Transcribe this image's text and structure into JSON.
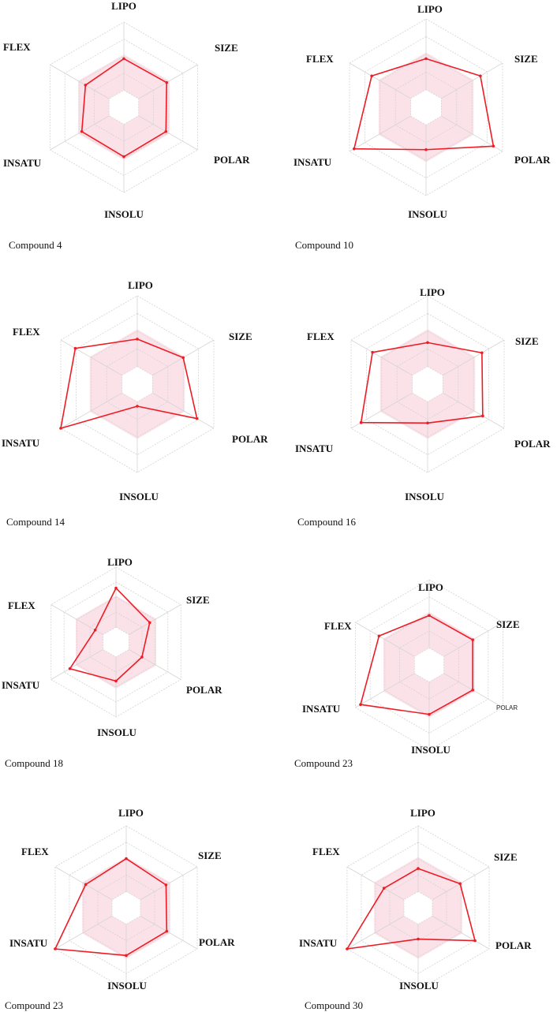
{
  "colors": {
    "optimal_band_fill": "#f7c8d6",
    "optimal_band_opacity": 0.55,
    "series_line": "#ee1c25",
    "grid": "#d4d4d4",
    "text": "#111111"
  },
  "axes": [
    "LIPO",
    "SIZE",
    "POLAR",
    "INSOLU",
    "INSATU",
    "FLEX"
  ],
  "chart_data": [
    {
      "type": "radar",
      "caption": "Compound 4",
      "axes": [
        "LIPO",
        "SIZE",
        "POLAR",
        "INSOLU",
        "INSATU",
        "FLEX"
      ],
      "series": [
        {
          "values": [
            0.57,
            0.58,
            0.57,
            0.58,
            0.57,
            0.52
          ]
        }
      ]
    },
    {
      "type": "radar",
      "caption": "Compound 10",
      "axes": [
        "LIPO",
        "SIZE",
        "POLAR",
        "INSOLU",
        "INSATU",
        "FLEX"
      ],
      "series": [
        {
          "values": [
            0.55,
            0.71,
            0.88,
            0.48,
            0.94,
            0.71
          ]
        }
      ]
    },
    {
      "type": "radar",
      "caption": "Compound 14",
      "axes": [
        "LIPO",
        "SIZE",
        "POLAR",
        "INSOLU",
        "INSATU",
        "FLEX"
      ],
      "series": [
        {
          "values": [
            0.51,
            0.6,
            0.78,
            0.25,
            1.0,
            0.81
          ]
        }
      ]
    },
    {
      "type": "radar",
      "caption": "Compound 16",
      "axes": [
        "LIPO",
        "SIZE",
        "POLAR",
        "INSOLU",
        "INSATU",
        "FLEX"
      ],
      "series": [
        {
          "values": [
            0.47,
            0.71,
            0.72,
            0.44,
            0.87,
            0.72
          ]
        }
      ]
    },
    {
      "type": "radar",
      "caption": "Compound 18",
      "axes": [
        "LIPO",
        "SIZE",
        "POLAR",
        "INSOLU",
        "INSATU",
        "FLEX"
      ],
      "series": [
        {
          "values": [
            0.72,
            0.52,
            0.4,
            0.52,
            0.71,
            0.32
          ]
        }
      ]
    },
    {
      "type": "radar",
      "caption": "Compound 23",
      "axes": [
        "LIPO",
        "SIZE",
        "POLAR",
        "INSOLU",
        "INSATU",
        "FLEX"
      ],
      "series": [
        {
          "values": [
            0.58,
            0.59,
            0.59,
            0.58,
            0.93,
            0.68
          ]
        }
      ]
    },
    {
      "type": "radar",
      "caption": "Compound 23",
      "axes": [
        "LIPO",
        "SIZE",
        "POLAR",
        "INSOLU",
        "INSATU",
        "FLEX"
      ],
      "series": [
        {
          "values": [
            0.6,
            0.56,
            0.57,
            0.58,
            1.0,
            0.57
          ]
        }
      ]
    },
    {
      "type": "radar",
      "caption": "Compound 30",
      "axes": [
        "LIPO",
        "SIZE",
        "POLAR",
        "INSOLU",
        "INSATU",
        "FLEX"
      ],
      "series": [
        {
          "values": [
            0.48,
            0.59,
            0.8,
            0.38,
            1.0,
            0.48
          ]
        }
      ]
    }
  ]
}
